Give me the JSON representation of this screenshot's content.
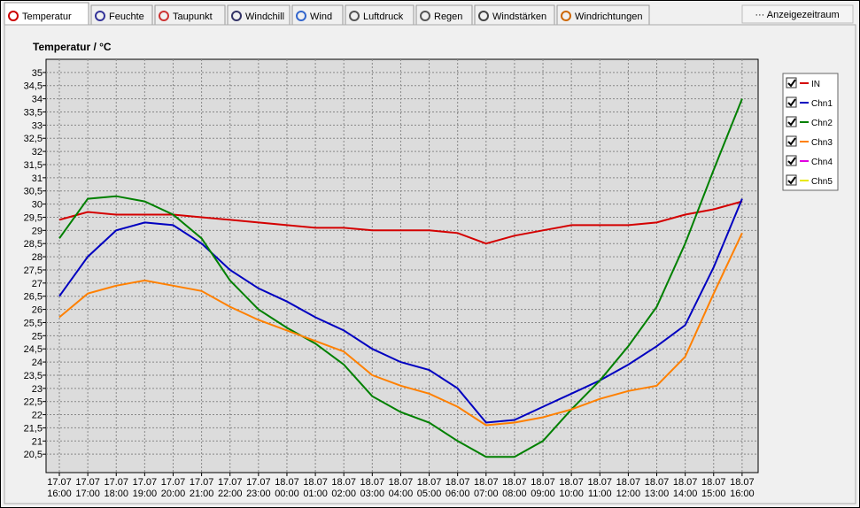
{
  "tabs": [
    "Temperatur",
    "Feuchte",
    "Taupunkt",
    "Windchill",
    "Wind",
    "Luftdruck",
    "Regen",
    "Windstärken",
    "Windrichtungen"
  ],
  "button": "··· Anzeigezeitraum",
  "chart_data": {
    "type": "line",
    "title": "Temperatur / °C",
    "categories": [
      "17.07 16:00",
      "17.07 17:00",
      "17.07 18:00",
      "17.07 19:00",
      "17.07 20:00",
      "17.07 21:00",
      "17.07 22:00",
      "17.07 23:00",
      "18.07 00:00",
      "18.07 01:00",
      "18.07 02:00",
      "18.07 03:00",
      "18.07 04:00",
      "18.07 05:00",
      "18.07 06:00",
      "18.07 07:00",
      "18.07 08:00",
      "18.07 09:00",
      "18.07 10:00",
      "18.07 11:00",
      "18.07 12:00",
      "18.07 13:00",
      "18.07 14:00",
      "18.07 15:00",
      "18.07 16:00"
    ],
    "series": [
      {
        "name": "IN",
        "color": "#d40000",
        "values": [
          29.4,
          29.7,
          29.6,
          29.6,
          29.6,
          29.5,
          29.4,
          29.3,
          29.2,
          29.1,
          29.1,
          29.0,
          29.0,
          29.0,
          28.9,
          28.5,
          28.8,
          29.0,
          29.2,
          29.2,
          29.2,
          29.3,
          29.6,
          29.8,
          30.1
        ]
      },
      {
        "name": "Chn1",
        "color": "#0000c0",
        "values": [
          26.5,
          28.0,
          29.0,
          29.3,
          29.2,
          28.5,
          27.5,
          26.8,
          26.3,
          25.7,
          25.2,
          24.5,
          24.0,
          23.7,
          23.0,
          21.7,
          21.8,
          22.3,
          22.8,
          23.3,
          23.9,
          24.6,
          25.4,
          27.6,
          30.2
        ]
      },
      {
        "name": "Chn2",
        "color": "#008000",
        "values": [
          28.7,
          30.2,
          30.3,
          30.1,
          29.6,
          28.7,
          27.1,
          26.0,
          25.3,
          24.7,
          23.9,
          22.7,
          22.1,
          21.7,
          21.0,
          20.4,
          20.4,
          21.0,
          22.2,
          23.3,
          24.6,
          26.1,
          28.5,
          31.3,
          34.0
        ]
      },
      {
        "name": "Chn3",
        "color": "#ff8000",
        "values": [
          25.7,
          26.6,
          26.9,
          27.1,
          26.9,
          26.7,
          26.1,
          25.6,
          25.2,
          24.8,
          24.4,
          23.5,
          23.1,
          22.8,
          22.3,
          21.6,
          21.7,
          21.9,
          22.2,
          22.6,
          22.9,
          23.1,
          24.2,
          26.6,
          28.9
        ]
      },
      {
        "name": "Chn4",
        "color": "#e000e0",
        "values": [
          null,
          null,
          null,
          null,
          null,
          null,
          null,
          null,
          null,
          null,
          null,
          null,
          null,
          null,
          null,
          null,
          null,
          null,
          null,
          null,
          null,
          null,
          null,
          null,
          null
        ]
      },
      {
        "name": "Chn5",
        "color": "#e8e800",
        "values": [
          null,
          null,
          null,
          null,
          null,
          null,
          null,
          null,
          null,
          null,
          null,
          null,
          null,
          null,
          null,
          null,
          null,
          null,
          null,
          null,
          null,
          null,
          null,
          null,
          null
        ]
      }
    ],
    "ylim": [
      19.8,
      35.5
    ],
    "yticks": [
      {
        "value": 20.5,
        "label": "20,5"
      },
      21,
      {
        "value": 21.5,
        "label": "21,5"
      },
      22,
      {
        "value": 22.5,
        "label": "22,5"
      },
      23,
      {
        "value": 23.5,
        "label": "23,5"
      },
      24,
      {
        "value": 24.5,
        "label": "24,5"
      },
      25,
      {
        "value": 25.5,
        "label": "25,5"
      },
      26,
      {
        "value": 26.5,
        "label": "26,5"
      },
      27,
      {
        "value": 27.5,
        "label": "27,5"
      },
      28,
      {
        "value": 28.5,
        "label": "28,5"
      },
      29,
      {
        "value": 29.5,
        "label": "29,5"
      },
      30,
      {
        "value": 30.5,
        "label": "30,5"
      },
      31,
      {
        "value": 31.5,
        "label": "31,5"
      },
      32,
      {
        "value": 32.5,
        "label": "32,5"
      },
      33,
      {
        "value": 33.5,
        "label": "33,5"
      },
      34,
      {
        "value": 34.5,
        "label": "34,5"
      },
      35
    ],
    "grid": true
  }
}
